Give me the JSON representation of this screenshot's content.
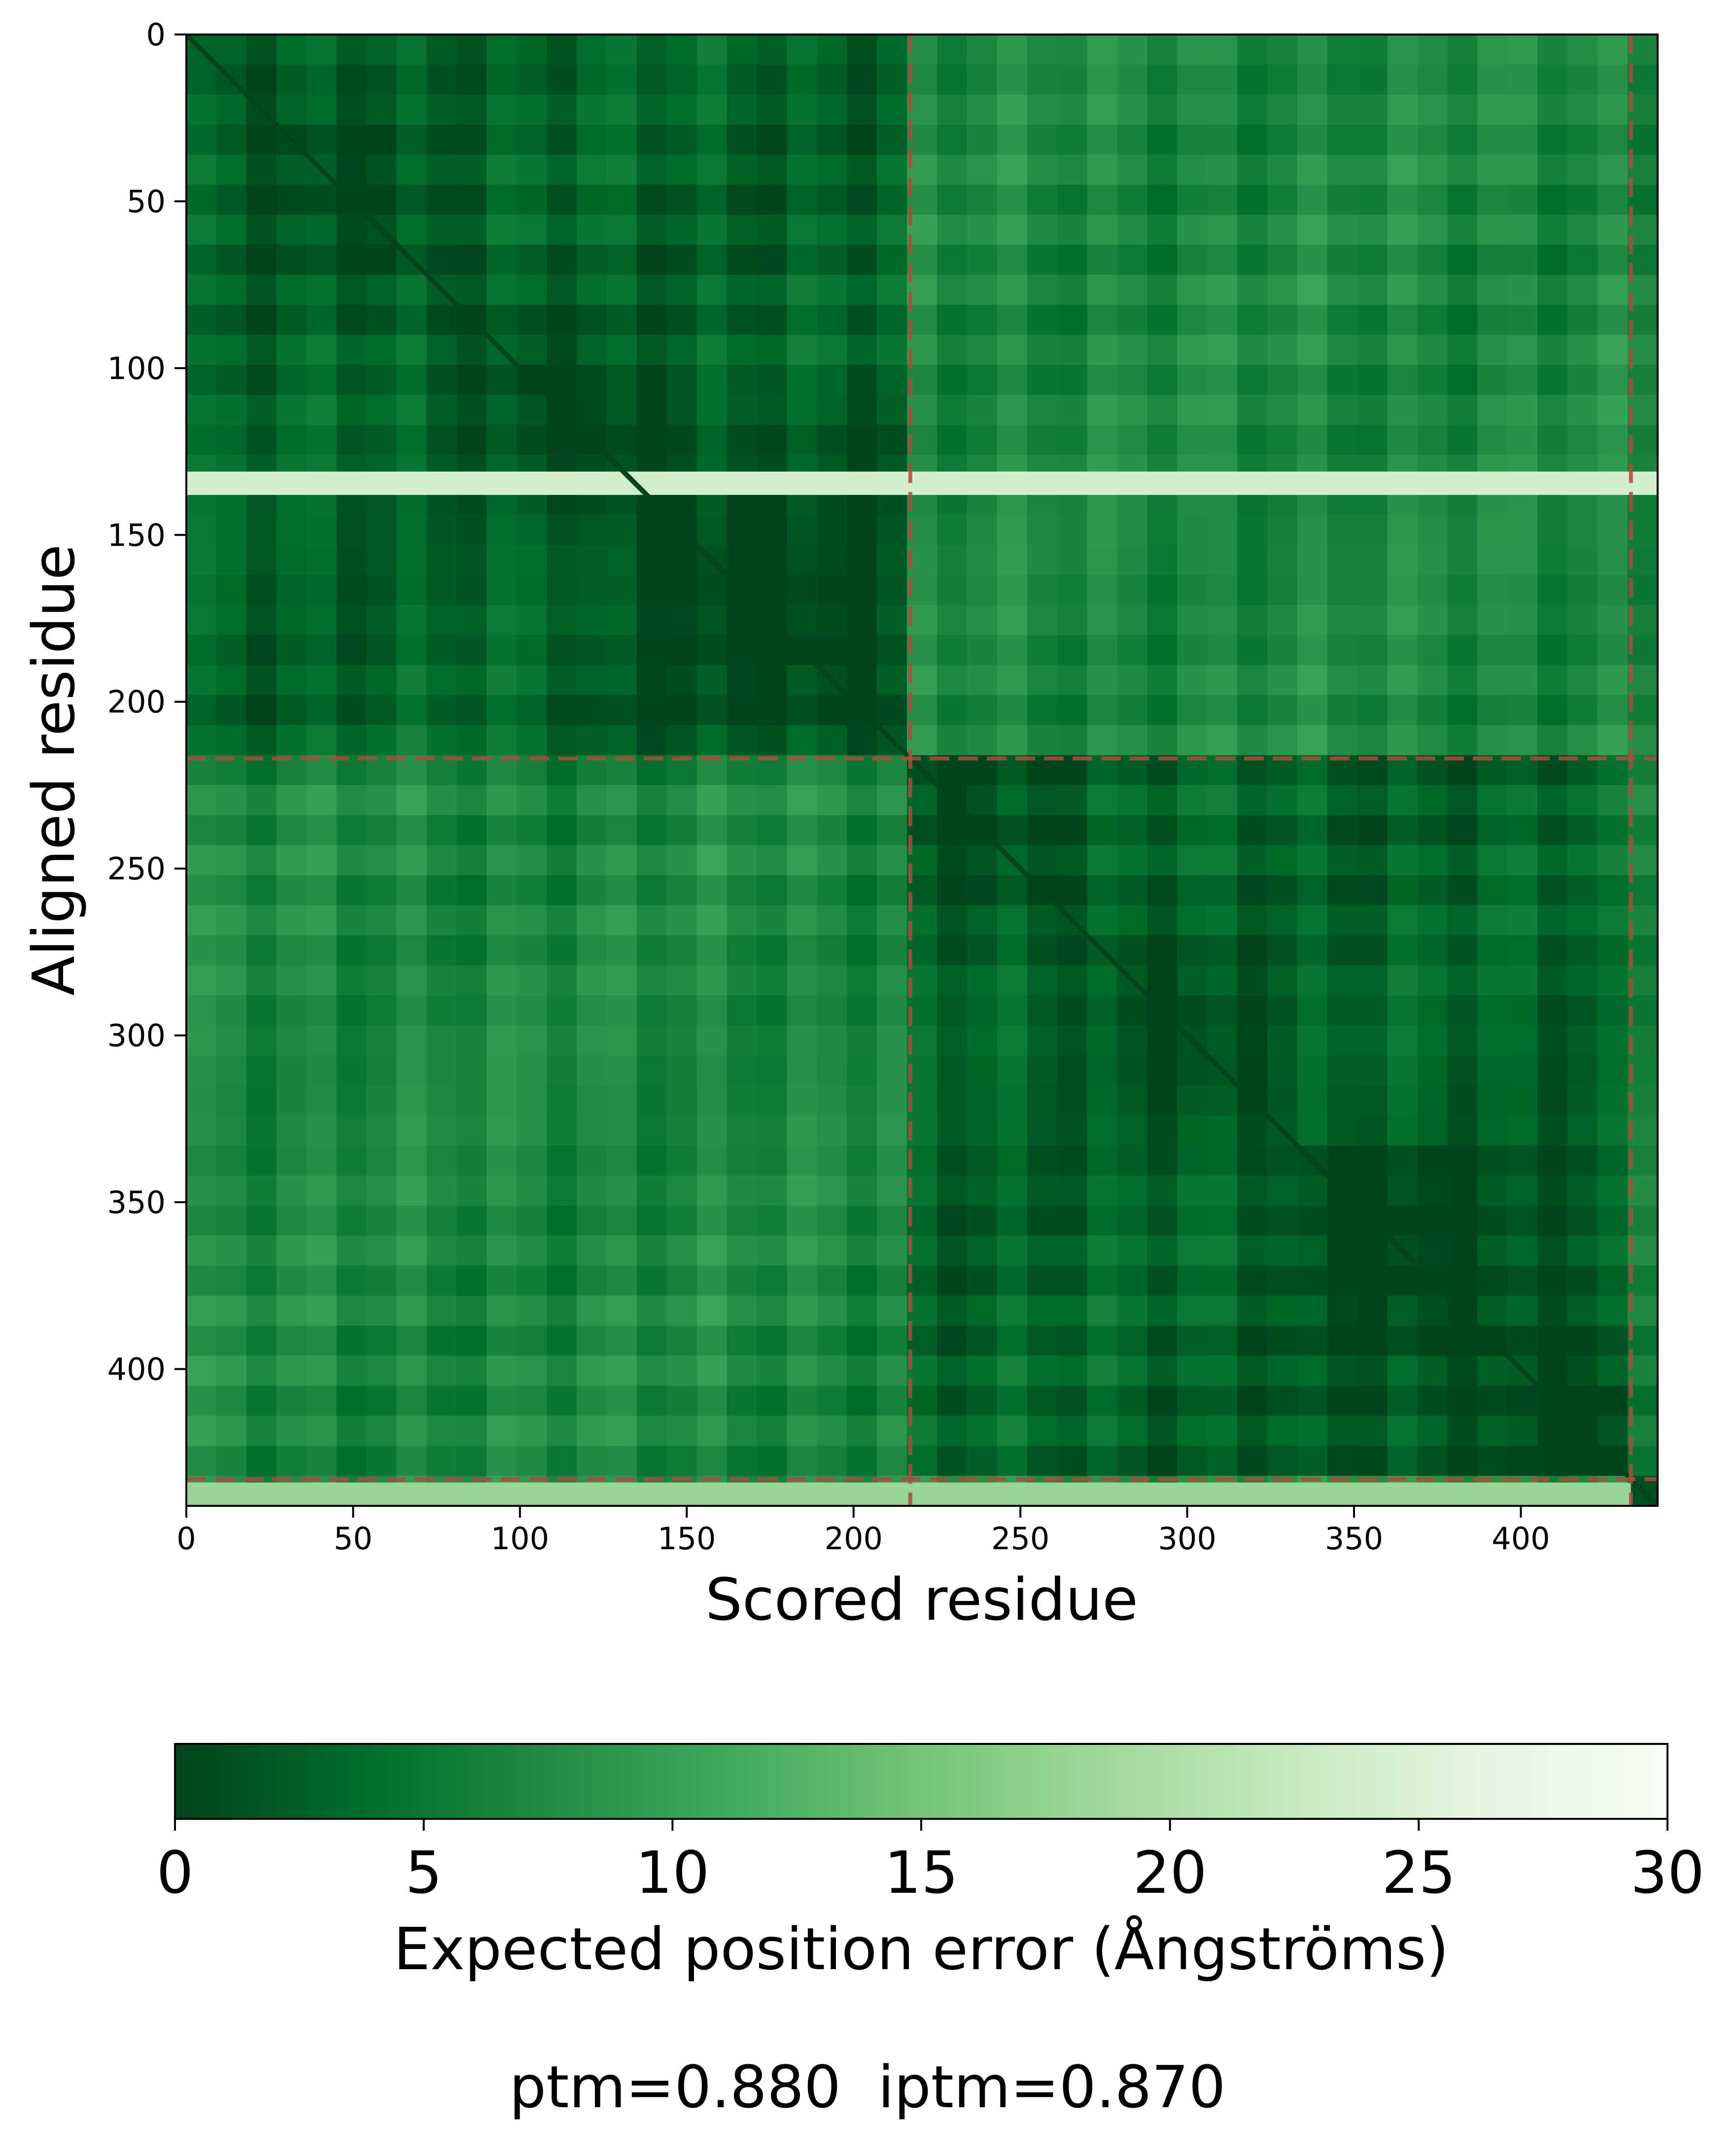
{
  "chart_data": {
    "type": "heatmap",
    "matrix_size": 441,
    "xlabel": "Scored residue",
    "ylabel": "Aligned residue",
    "x_ticks": [
      0,
      50,
      100,
      150,
      200,
      250,
      300,
      350,
      400
    ],
    "y_ticks": [
      0,
      50,
      100,
      150,
      200,
      250,
      300,
      350,
      400
    ],
    "xlim": [
      0,
      441
    ],
    "ylim": [
      441,
      0
    ],
    "chain_boundaries": [
      217,
      433
    ],
    "boundary_line_color": "#b04a3c",
    "colormap": "Greens_r",
    "colormap_stops": [
      "#00441b",
      "#006d2c",
      "#238b45",
      "#41ab5d",
      "#74c476",
      "#a1d99b",
      "#c7e9c0",
      "#e5f5e0",
      "#f7fcf5"
    ],
    "colorbar": {
      "label": "Expected position error (Ångströms)",
      "range": [
        0,
        30
      ],
      "ticks": [
        0,
        5,
        10,
        15,
        20,
        25,
        30
      ],
      "orientation": "horizontal"
    },
    "approx_values": {
      "diagonal": 0.5,
      "intra_chain_typical": 3,
      "inter_chain_typical": 7,
      "bright_row_band": [
        131,
        138
      ],
      "bright_row_band_value": 24,
      "third_chain_row_band": [
        434,
        441
      ],
      "third_chain_row_band_value": 18
    }
  },
  "scores": {
    "text": "ptm=0.880  iptm=0.870"
  }
}
